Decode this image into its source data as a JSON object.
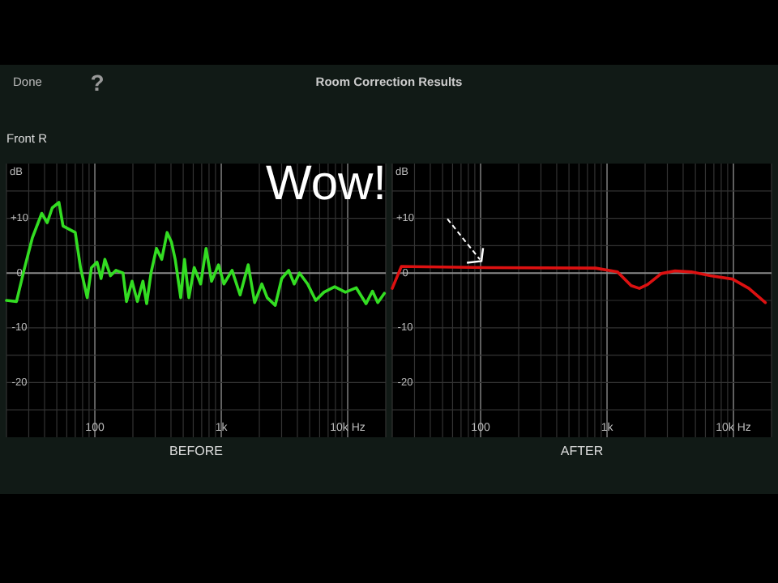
{
  "chart_data": [
    {
      "type": "line",
      "title": "Room Correction Results",
      "subtitle": "Front R",
      "xlabel": "BEFORE",
      "ylabel": "dB",
      "annotations": [
        "Done",
        "?"
      ],
      "log": "x",
      "grid": true,
      "marker": "none",
      "line_style": "solid",
      "xlim": [
        20,
        20000
      ],
      "ylim": [
        -30,
        20
      ],
      "xticks": [
        {
          "value": 20,
          "label": null
        },
        {
          "value": 30,
          "label": null
        },
        {
          "value": 40,
          "label": null
        },
        {
          "value": 50,
          "label": null
        },
        {
          "value": 60,
          "label": null
        },
        {
          "value": 70,
          "label": null
        },
        {
          "value": 80,
          "label": null
        },
        {
          "value": 90,
          "label": null
        },
        100,
        {
          "value": 200,
          "label": null
        },
        {
          "value": 300,
          "label": null
        },
        {
          "value": 400,
          "label": null
        },
        {
          "value": 500,
          "label": null
        },
        {
          "value": 600,
          "label": null
        },
        {
          "value": 700,
          "label": null
        },
        {
          "value": 800,
          "label": null
        },
        {
          "value": 900,
          "label": null
        },
        {
          "value": 1000,
          "label": "1k"
        },
        {
          "value": 2000,
          "label": null
        },
        {
          "value": 3000,
          "label": null
        },
        {
          "value": 4000,
          "label": null
        },
        {
          "value": 5000,
          "label": null
        },
        {
          "value": 6000,
          "label": null
        },
        {
          "value": 7000,
          "label": null
        },
        {
          "value": 8000,
          "label": null
        },
        {
          "value": 9000,
          "label": null
        },
        {
          "value": 10000,
          "label": "10k Hz"
        },
        {
          "value": 20000,
          "label": null
        }
      ],
      "yticks": [
        {
          "value": 15,
          "label": null
        },
        {
          "value": 10,
          "label": "+10"
        },
        {
          "value": 5,
          "label": null
        },
        0,
        {
          "value": -5,
          "label": null
        },
        -10,
        {
          "value": -15,
          "label": null
        },
        -20,
        {
          "value": -25,
          "label": null
        }
      ],
      "series": [
        {
          "color": "#33dd22",
          "x": [
            20,
            24,
            27.5,
            32,
            38,
            42,
            46,
            52,
            56,
            70,
            77,
            87,
            94,
            104,
            112,
            120,
            133,
            147,
            167,
            178,
            197,
            217,
            240,
            257,
            278,
            307,
            338,
            373,
            404,
            432,
            478,
            512,
            554,
            611,
            687,
            758,
            838,
            951,
            1049,
            1217,
            1409,
            1633,
            1837,
            2093,
            2307,
            2673,
            3006,
            3414,
            3776,
            4159,
            4820,
            5587,
            6486,
            7888,
            9594,
            11690,
            13960,
            15700,
            17300,
            19500
          ],
          "values": [
            -5,
            -5.2,
            0.5,
            6.4,
            10.9,
            9.2,
            11.9,
            12.9,
            8.6,
            7.4,
            1,
            -4.5,
            1,
            2,
            -1,
            2.5,
            -0.5,
            0.5,
            0,
            -5.2,
            -1.5,
            -5.2,
            -1.5,
            -5.6,
            0,
            4.5,
            2.5,
            7.4,
            5.6,
            2.5,
            -4.5,
            2.5,
            -4.5,
            1,
            -2,
            4.5,
            -1.5,
            1.5,
            -2,
            0.5,
            -4,
            1.5,
            -5.4,
            -2,
            -4.5,
            -5.9,
            -1,
            0.5,
            -2,
            0,
            -2,
            -5,
            -3.5,
            -2.5,
            -3.5,
            -2.7,
            -5.6,
            -3.3,
            -5.4,
            -3.7
          ]
        }
      ]
    },
    {
      "type": "line",
      "xlabel": "AFTER",
      "ylabel": "dB",
      "annotations": [
        {
          "text": "Wow!",
          "x": 111,
          "y": 1
        }
      ],
      "log": "x",
      "grid": true,
      "marker": "none",
      "line_style": "solid",
      "xlim": [
        20,
        20000
      ],
      "ylim": [
        -30,
        20
      ],
      "xticks": [
        {
          "value": 20,
          "label": null
        },
        {
          "value": 30,
          "label": null
        },
        {
          "value": 40,
          "label": null
        },
        {
          "value": 50,
          "label": null
        },
        {
          "value": 60,
          "label": null
        },
        {
          "value": 70,
          "label": null
        },
        {
          "value": 80,
          "label": null
        },
        {
          "value": 90,
          "label": null
        },
        100,
        {
          "value": 200,
          "label": null
        },
        {
          "value": 300,
          "label": null
        },
        {
          "value": 400,
          "label": null
        },
        {
          "value": 500,
          "label": null
        },
        {
          "value": 600,
          "label": null
        },
        {
          "value": 700,
          "label": null
        },
        {
          "value": 800,
          "label": null
        },
        {
          "value": 900,
          "label": null
        },
        {
          "value": 1000,
          "label": "1k"
        },
        {
          "value": 2000,
          "label": null
        },
        {
          "value": 3000,
          "label": null
        },
        {
          "value": 4000,
          "label": null
        },
        {
          "value": 5000,
          "label": null
        },
        {
          "value": 6000,
          "label": null
        },
        {
          "value": 7000,
          "label": null
        },
        {
          "value": 8000,
          "label": null
        },
        {
          "value": 9000,
          "label": null
        },
        {
          "value": 10000,
          "label": "10k Hz"
        },
        {
          "value": 20000,
          "label": null
        }
      ],
      "yticks": [
        {
          "value": 15,
          "label": null
        },
        {
          "value": 10,
          "label": "+10"
        },
        {
          "value": 5,
          "label": null
        },
        0,
        {
          "value": -5,
          "label": null
        },
        -10,
        {
          "value": -15,
          "label": null
        },
        -20,
        {
          "value": -25,
          "label": null
        }
      ],
      "series": [
        {
          "color": "#dd1111",
          "x": [
            20,
            23.6,
            111,
            811,
            1210,
            1552,
            1802,
            2093,
            2684,
            3449,
            4652,
            6580,
            9820,
            13240,
            17860
          ],
          "values": [
            -2.8,
            1.2,
            1,
            0.9,
            0.2,
            -2.3,
            -2.8,
            -2.1,
            -0.1,
            0.4,
            0.2,
            -0.5,
            -1.1,
            -2.8,
            -5.4
          ]
        }
      ]
    }
  ]
}
